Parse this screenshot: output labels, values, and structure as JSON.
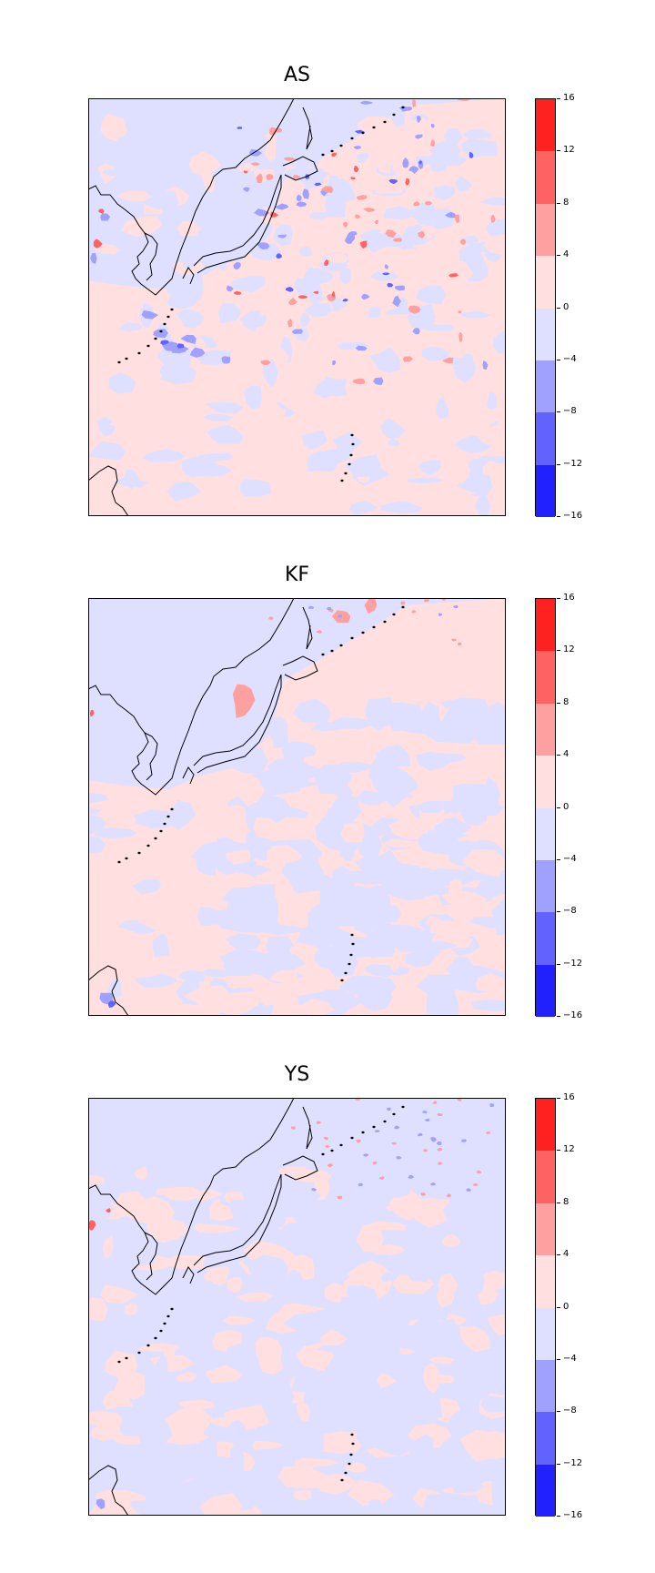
{
  "figure": {
    "colorbar": {
      "levels": [
        16,
        12,
        8,
        4,
        0,
        -4,
        -8,
        -12,
        -16
      ],
      "tick_labels": [
        "16",
        "12",
        "8",
        "4",
        "0",
        "−4",
        "−8",
        "−12",
        "−16"
      ],
      "colors": [
        "#ff2020",
        "#ff6262",
        "#ffa0a0",
        "#ffdfdf",
        "#dfe0ff",
        "#a0a0ff",
        "#6262ff",
        "#2121ff"
      ]
    },
    "panels": [
      {
        "title": "AS",
        "id": "as",
        "pattern": "noisy-blue-mix"
      },
      {
        "title": "KF",
        "id": "kf",
        "pattern": "mostly-positive"
      },
      {
        "title": "YS",
        "id": "ys",
        "pattern": "weak-mix"
      }
    ]
  },
  "legend_fill_colors": {
    "deep_negative": "#2121ff",
    "mid_negative": "#6262ff",
    "weak_negative": "#a0a0ff",
    "slight_negative": "#dfe0ff",
    "slight_positive": "#ffdfdf",
    "weak_positive": "#ffa0a0",
    "mid_positive": "#ff6262",
    "strong_positive": "#ff2020",
    "coastline": "#000000"
  }
}
